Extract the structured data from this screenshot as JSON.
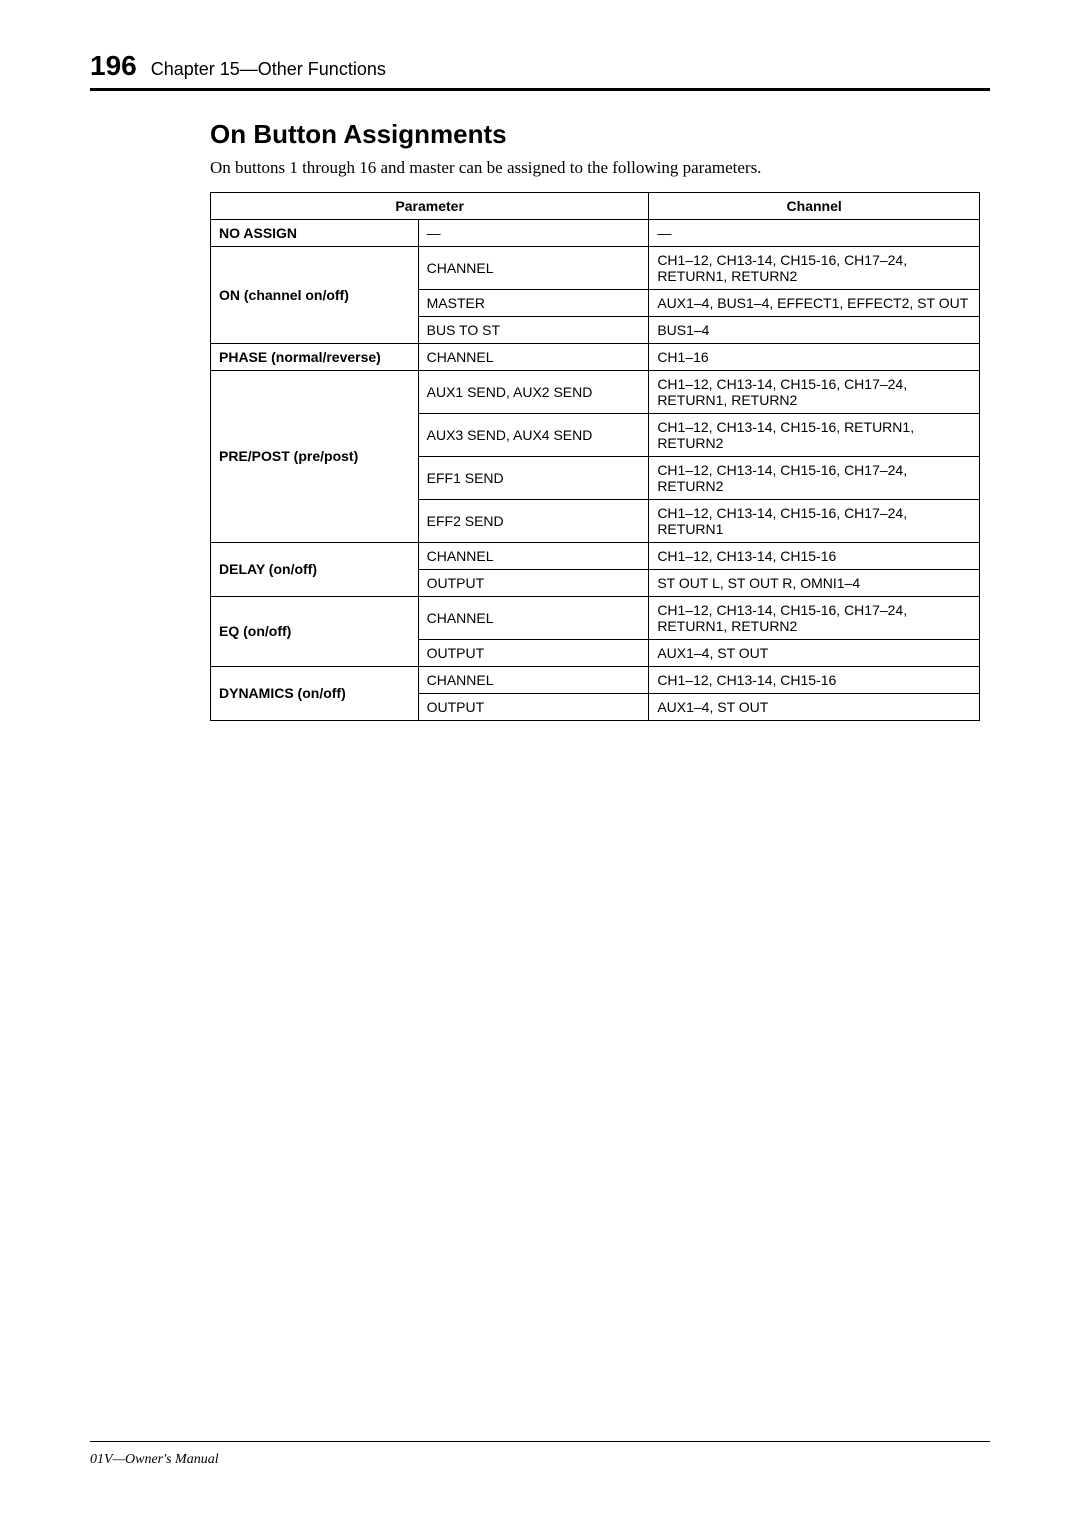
{
  "header": {
    "page_number": "196",
    "chapter": "Chapter 15—Other Functions"
  },
  "section": {
    "title": "On Button Assignments",
    "intro": "On buttons 1 through 16 and master can be assigned to the following parameters."
  },
  "table": {
    "headers": {
      "parameter": "Parameter",
      "channel": "Channel"
    },
    "rows": {
      "no_assign": {
        "label": "NO ASSIGN",
        "sub": "—",
        "channel": "—"
      },
      "on": {
        "label": "ON (channel on/off)",
        "r1": {
          "sub": "CHANNEL",
          "channel": "CH1–12, CH13-14, CH15-16, CH17–24, RETURN1, RETURN2"
        },
        "r2": {
          "sub": "MASTER",
          "channel": "AUX1–4, BUS1–4, EFFECT1, EFFECT2, ST OUT"
        },
        "r3": {
          "sub": "BUS TO ST",
          "channel": "BUS1–4"
        }
      },
      "phase": {
        "label": "PHASE (normal/reverse)",
        "sub": "CHANNEL",
        "channel": "CH1–16"
      },
      "prepost": {
        "label": "PRE/POST (pre/post)",
        "r1": {
          "sub": "AUX1 SEND, AUX2 SEND",
          "channel": "CH1–12, CH13-14, CH15-16, CH17–24, RETURN1, RETURN2"
        },
        "r2": {
          "sub": "AUX3 SEND, AUX4 SEND",
          "channel": "CH1–12, CH13-14, CH15-16, RETURN1, RETURN2"
        },
        "r3": {
          "sub": "EFF1 SEND",
          "channel": "CH1–12, CH13-14, CH15-16, CH17–24, RETURN2"
        },
        "r4": {
          "sub": "EFF2 SEND",
          "channel": "CH1–12, CH13-14, CH15-16, CH17–24, RETURN1"
        }
      },
      "delay": {
        "label": "DELAY (on/off)",
        "r1": {
          "sub": "CHANNEL",
          "channel": "CH1–12, CH13-14, CH15-16"
        },
        "r2": {
          "sub": "OUTPUT",
          "channel": "ST OUT L, ST OUT R, OMNI1–4"
        }
      },
      "eq": {
        "label": "EQ (on/off)",
        "r1": {
          "sub": "CHANNEL",
          "channel": "CH1–12, CH13-14, CH15-16, CH17–24, RETURN1, RETURN2"
        },
        "r2": {
          "sub": "OUTPUT",
          "channel": "AUX1–4, ST OUT"
        }
      },
      "dynamics": {
        "label": "DYNAMICS (on/off)",
        "r1": {
          "sub": "CHANNEL",
          "channel": "CH1–12, CH13-14, CH15-16"
        },
        "r2": {
          "sub": "OUTPUT",
          "channel": "AUX1–4, ST OUT"
        }
      }
    }
  },
  "footer": {
    "text": "01V—Owner's Manual"
  },
  "colors": {
    "text": "#000000",
    "background": "#ffffff",
    "border": "#000000"
  }
}
